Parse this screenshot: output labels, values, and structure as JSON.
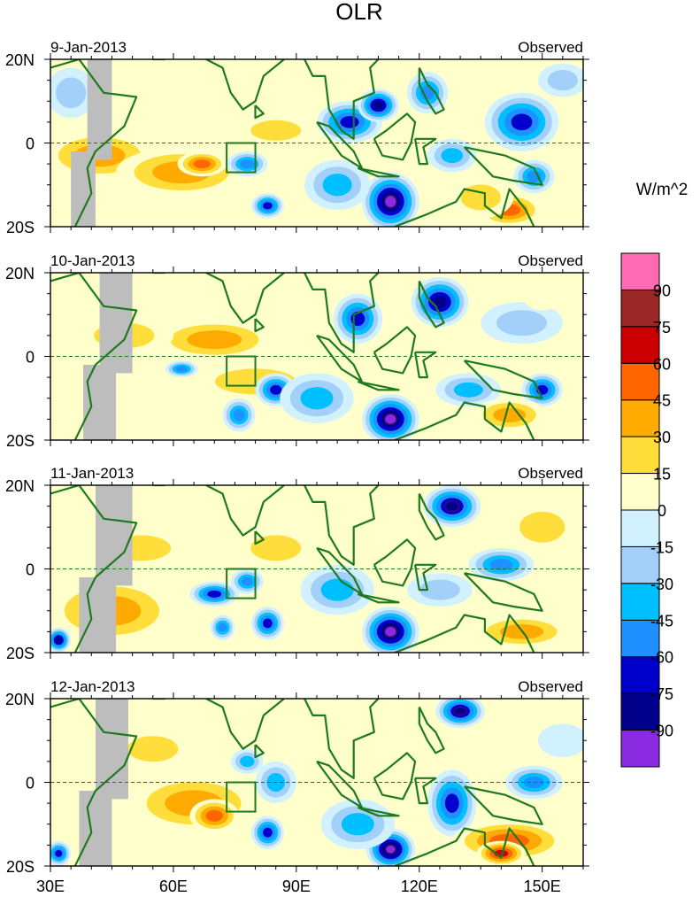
{
  "chart_data": {
    "type": "heatmap",
    "title": "OLR",
    "units": "W/m^2",
    "x_range": [
      30,
      160
    ],
    "y_range": [
      -20,
      20
    ],
    "x_ticks": [
      {
        "value": 30,
        "label": "30E"
      },
      {
        "value": 60,
        "label": "60E"
      },
      {
        "value": 90,
        "label": "90E"
      },
      {
        "value": 120,
        "label": "120E"
      },
      {
        "value": 150,
        "label": "150E"
      }
    ],
    "y_ticks": [
      {
        "value": 20,
        "label": "20N"
      },
      {
        "value": 0,
        "label": "0"
      },
      {
        "value": -20,
        "label": "20S"
      }
    ],
    "box_region": {
      "lon": [
        73,
        80
      ],
      "lat": [
        -7,
        0
      ]
    },
    "colorbar": {
      "colors": [
        "#8a2be2",
        "#00008b",
        "#0000cd",
        "#1e90ff",
        "#00bfff",
        "#a3d0f8",
        "#d2f1ff",
        "#ffffcc",
        "#ffde3c",
        "#ffaa00",
        "#ff6600",
        "#cc0000",
        "#9b2626",
        "#ff6ab4"
      ],
      "labels": [
        "-90",
        "-75",
        "-60",
        "-45",
        "-30",
        "-15",
        "0",
        "15",
        "30",
        "45",
        "60",
        "75",
        "90"
      ]
    },
    "panels": [
      {
        "date": "9-Jan-2013",
        "label": "Observed",
        "blobs": [
          {
            "lon": 42,
            "lat": -3,
            "rx": 14,
            "ry": 6,
            "v": 35
          },
          {
            "lon": 62,
            "lat": -7,
            "rx": 16,
            "ry": 6,
            "v": 38
          },
          {
            "lon": 67,
            "lat": -5,
            "rx": 6,
            "ry": 3,
            "v": 50
          },
          {
            "lon": 85,
            "lat": 3,
            "rx": 10,
            "ry": 4,
            "v": 25
          },
          {
            "lon": 35,
            "lat": 12,
            "rx": 6,
            "ry": 6,
            "v": -25
          },
          {
            "lon": 78,
            "lat": -5,
            "rx": 5,
            "ry": 3,
            "v": -55
          },
          {
            "lon": 83,
            "lat": -15,
            "rx": 4,
            "ry": 3,
            "v": -65
          },
          {
            "lon": 103,
            "lat": 5,
            "rx": 8,
            "ry": 5,
            "v": -65
          },
          {
            "lon": 110,
            "lat": 9,
            "rx": 5,
            "ry": 4,
            "v": -80
          },
          {
            "lon": 113,
            "lat": -14,
            "rx": 7,
            "ry": 7,
            "v": -95
          },
          {
            "lon": 100,
            "lat": -10,
            "rx": 8,
            "ry": 6,
            "v": -40
          },
          {
            "lon": 122,
            "lat": 12,
            "rx": 5,
            "ry": 5,
            "v": -60
          },
          {
            "lon": 128,
            "lat": -3,
            "rx": 6,
            "ry": 4,
            "v": -35
          },
          {
            "lon": 145,
            "lat": 5,
            "rx": 9,
            "ry": 7,
            "v": -70
          },
          {
            "lon": 148,
            "lat": -8,
            "rx": 5,
            "ry": 4,
            "v": -60
          },
          {
            "lon": 142,
            "lat": -16,
            "rx": 8,
            "ry": 4,
            "v": 60
          },
          {
            "lon": 135,
            "lat": -13,
            "rx": 8,
            "ry": 5,
            "v": 30
          },
          {
            "lon": 155,
            "lat": 15,
            "rx": 6,
            "ry": 4,
            "v": -20
          }
        ]
      },
      {
        "date": "10-Jan-2013",
        "label": "Observed",
        "blobs": [
          {
            "lon": 70,
            "lat": 4,
            "rx": 15,
            "ry": 5,
            "v": 35
          },
          {
            "lon": 48,
            "lat": 5,
            "rx": 12,
            "ry": 5,
            "v": 25
          },
          {
            "lon": 80,
            "lat": -6,
            "rx": 16,
            "ry": 5,
            "v": 20
          },
          {
            "lon": 62,
            "lat": -3,
            "rx": 4,
            "ry": 2,
            "v": -50
          },
          {
            "lon": 85,
            "lat": -8,
            "rx": 5,
            "ry": 4,
            "v": -70
          },
          {
            "lon": 76,
            "lat": -14,
            "rx": 4,
            "ry": 4,
            "v": -60
          },
          {
            "lon": 105,
            "lat": 9,
            "rx": 6,
            "ry": 6,
            "v": -70
          },
          {
            "lon": 125,
            "lat": 13,
            "rx": 7,
            "ry": 6,
            "v": -85
          },
          {
            "lon": 113,
            "lat": -15,
            "rx": 7,
            "ry": 6,
            "v": -95
          },
          {
            "lon": 95,
            "lat": -10,
            "rx": 9,
            "ry": 6,
            "v": -40
          },
          {
            "lon": 132,
            "lat": -8,
            "rx": 8,
            "ry": 4,
            "v": -45
          },
          {
            "lon": 150,
            "lat": -8,
            "rx": 5,
            "ry": 4,
            "v": -65
          },
          {
            "lon": 142,
            "lat": -14,
            "rx": 9,
            "ry": 4,
            "v": 45
          },
          {
            "lon": 145,
            "lat": 8,
            "rx": 10,
            "ry": 5,
            "v": -25
          },
          {
            "lon": 150,
            "lat": 15,
            "rx": 5,
            "ry": 4,
            "v": 15
          }
        ]
      },
      {
        "date": "11-Jan-2013",
        "label": "Observed",
        "blobs": [
          {
            "lon": 45,
            "lat": -10,
            "rx": 16,
            "ry": 8,
            "v": 40
          },
          {
            "lon": 52,
            "lat": 5,
            "rx": 12,
            "ry": 5,
            "v": 25
          },
          {
            "lon": 70,
            "lat": -6,
            "rx": 6,
            "ry": 3,
            "v": -65
          },
          {
            "lon": 78,
            "lat": -3,
            "rx": 4,
            "ry": 3,
            "v": -50
          },
          {
            "lon": 83,
            "lat": -13,
            "rx": 4,
            "ry": 4,
            "v": -70
          },
          {
            "lon": 72,
            "lat": -14,
            "rx": 3,
            "ry": 3,
            "v": -60
          },
          {
            "lon": 32,
            "lat": -17,
            "rx": 3,
            "ry": 3,
            "v": -85
          },
          {
            "lon": 128,
            "lat": 15,
            "rx": 7,
            "ry": 5,
            "v": -90
          },
          {
            "lon": 113,
            "lat": -15,
            "rx": 7,
            "ry": 6,
            "v": -95
          },
          {
            "lon": 100,
            "lat": -5,
            "rx": 9,
            "ry": 6,
            "v": -40
          },
          {
            "lon": 140,
            "lat": 1,
            "rx": 8,
            "ry": 4,
            "v": -60
          },
          {
            "lon": 145,
            "lat": -15,
            "rx": 12,
            "ry": 4,
            "v": 40
          },
          {
            "lon": 85,
            "lat": 5,
            "rx": 10,
            "ry": 5,
            "v": 25
          },
          {
            "lon": 150,
            "lat": 10,
            "rx": 9,
            "ry": 6,
            "v": 20
          },
          {
            "lon": 125,
            "lat": -5,
            "rx": 8,
            "ry": 4,
            "v": -25
          }
        ]
      },
      {
        "date": "12-Jan-2013",
        "label": "Observed",
        "blobs": [
          {
            "lon": 65,
            "lat": -5,
            "rx": 16,
            "ry": 7,
            "v": 40
          },
          {
            "lon": 55,
            "lat": 8,
            "rx": 10,
            "ry": 5,
            "v": 25
          },
          {
            "lon": 70,
            "lat": -8,
            "rx": 6,
            "ry": 4,
            "v": 50
          },
          {
            "lon": 85,
            "lat": 0,
            "rx": 5,
            "ry": 5,
            "v": -35
          },
          {
            "lon": 83,
            "lat": -12,
            "rx": 4,
            "ry": 4,
            "v": -65
          },
          {
            "lon": 78,
            "lat": 5,
            "rx": 4,
            "ry": 3,
            "v": -45
          },
          {
            "lon": 32,
            "lat": -17,
            "rx": 3,
            "ry": 3,
            "v": -70
          },
          {
            "lon": 130,
            "lat": 17,
            "rx": 6,
            "ry": 4,
            "v": -90
          },
          {
            "lon": 113,
            "lat": -16,
            "rx": 6,
            "ry": 5,
            "v": -95
          },
          {
            "lon": 128,
            "lat": -5,
            "rx": 6,
            "ry": 8,
            "v": -70
          },
          {
            "lon": 105,
            "lat": -10,
            "rx": 9,
            "ry": 6,
            "v": -35
          },
          {
            "lon": 148,
            "lat": 0,
            "rx": 7,
            "ry": 4,
            "v": -60
          },
          {
            "lon": 142,
            "lat": -14,
            "rx": 14,
            "ry": 5,
            "v": 50
          },
          {
            "lon": 140,
            "lat": -17,
            "rx": 6,
            "ry": 3,
            "v": 70
          },
          {
            "lon": 155,
            "lat": 10,
            "rx": 6,
            "ry": 4,
            "v": -15
          }
        ]
      }
    ]
  }
}
